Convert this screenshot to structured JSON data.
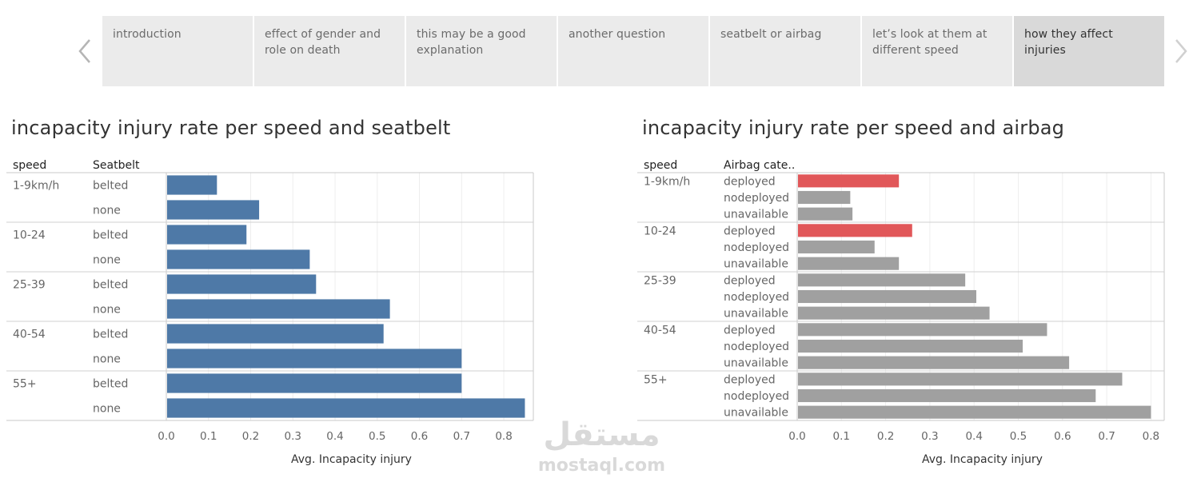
{
  "story": {
    "points": [
      {
        "label": "introduction"
      },
      {
        "label": "effect of gender and role on death"
      },
      {
        "label": "this may be a good explanation"
      },
      {
        "label": "another question"
      },
      {
        "label": "seatbelt or airbag"
      },
      {
        "label": "let’s look at them at different speed"
      },
      {
        "label": "how they affect injuries"
      }
    ],
    "active_index": 6
  },
  "watermark": {
    "arabic": "مستقل",
    "latin": "mostaql.com"
  },
  "colors": {
    "seatbelt_bar": "#4e79a7",
    "airbag_highlight": "#e15759",
    "airbag_bar": "#a0a0a0"
  },
  "chart_data": [
    {
      "type": "bar",
      "orientation": "horizontal",
      "title": "incapacity injury rate per speed and seatbelt",
      "row_headers": [
        "speed",
        "Seatbelt"
      ],
      "xlabel": "Avg. Incapacity injury",
      "xlim": [
        0,
        0.87
      ],
      "xticks": [
        "0.0",
        "0.1",
        "0.2",
        "0.3",
        "0.4",
        "0.5",
        "0.6",
        "0.7",
        "0.8"
      ],
      "grid": true,
      "groups": [
        {
          "label": "1-9km/h",
          "rows": [
            {
              "label": "belted",
              "value": 0.12
            },
            {
              "label": "none",
              "value": 0.22
            }
          ]
        },
        {
          "label": "10-24",
          "rows": [
            {
              "label": "belted",
              "value": 0.19
            },
            {
              "label": "none",
              "value": 0.34
            }
          ]
        },
        {
          "label": "25-39",
          "rows": [
            {
              "label": "belted",
              "value": 0.355
            },
            {
              "label": "none",
              "value": 0.53
            }
          ]
        },
        {
          "label": "40-54",
          "rows": [
            {
              "label": "belted",
              "value": 0.515
            },
            {
              "label": "none",
              "value": 0.7
            }
          ]
        },
        {
          "label": "55+",
          "rows": [
            {
              "label": "belted",
              "value": 0.7
            },
            {
              "label": "none",
              "value": 0.85
            }
          ]
        }
      ]
    },
    {
      "type": "bar",
      "orientation": "horizontal",
      "title": "incapacity injury rate per speed and airbag",
      "row_headers": [
        "speed",
        "Airbag cate.."
      ],
      "xlabel": "Avg. Incapacity injury",
      "xlim": [
        0,
        0.83
      ],
      "xticks": [
        "0.0",
        "0.1",
        "0.2",
        "0.3",
        "0.4",
        "0.5",
        "0.6",
        "0.7",
        "0.8"
      ],
      "grid": true,
      "highlight": [
        "1-9km/h|deployed",
        "10-24|deployed"
      ],
      "groups": [
        {
          "label": "1-9km/h",
          "rows": [
            {
              "label": "deployed",
              "value": 0.23
            },
            {
              "label": "nodeployed",
              "value": 0.12
            },
            {
              "label": "unavailable",
              "value": 0.125
            }
          ]
        },
        {
          "label": "10-24",
          "rows": [
            {
              "label": "deployed",
              "value": 0.26
            },
            {
              "label": "nodeployed",
              "value": 0.175
            },
            {
              "label": "unavailable",
              "value": 0.23
            }
          ]
        },
        {
          "label": "25-39",
          "rows": [
            {
              "label": "deployed",
              "value": 0.38
            },
            {
              "label": "nodeployed",
              "value": 0.405
            },
            {
              "label": "unavailable",
              "value": 0.435
            }
          ]
        },
        {
          "label": "40-54",
          "rows": [
            {
              "label": "deployed",
              "value": 0.565
            },
            {
              "label": "nodeployed",
              "value": 0.51
            },
            {
              "label": "unavailable",
              "value": 0.615
            }
          ]
        },
        {
          "label": "55+",
          "rows": [
            {
              "label": "deployed",
              "value": 0.735
            },
            {
              "label": "nodeployed",
              "value": 0.675
            },
            {
              "label": "unavailable",
              "value": 0.8
            }
          ]
        }
      ]
    }
  ]
}
